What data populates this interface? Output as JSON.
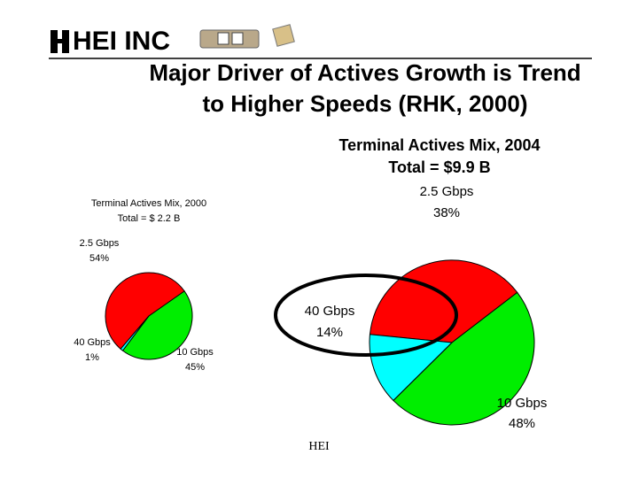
{
  "header": {
    "logo": "HEI INC",
    "title": [
      "Major Driver of Actives Growth is Trend",
      "to Higher Speeds (RHK, 2000)"
    ]
  },
  "chart_data": [
    {
      "type": "pie",
      "title": "Terminal Actives Mix, 2000",
      "subtitle": "Total = $ 2.2 B",
      "categories": [
        "2.5 Gbps",
        "10 Gbps",
        "40 Gbps"
      ],
      "values": [
        54,
        45,
        1
      ],
      "value_labels": [
        "54%",
        "45%",
        "1%"
      ],
      "colors": [
        "#ff0000",
        "#00ee00",
        "#00ffff"
      ]
    },
    {
      "type": "pie",
      "title": "Terminal Actives Mix, 2004",
      "subtitle": "Total = $9.9 B",
      "categories": [
        "2.5 Gbps",
        "10 Gbps",
        "40 Gbps"
      ],
      "values": [
        38,
        48,
        14
      ],
      "value_labels": [
        "38%",
        "48%",
        "14%"
      ],
      "colors": [
        "#ff0000",
        "#00ee00",
        "#00ffff"
      ]
    }
  ],
  "footer": "HEI"
}
